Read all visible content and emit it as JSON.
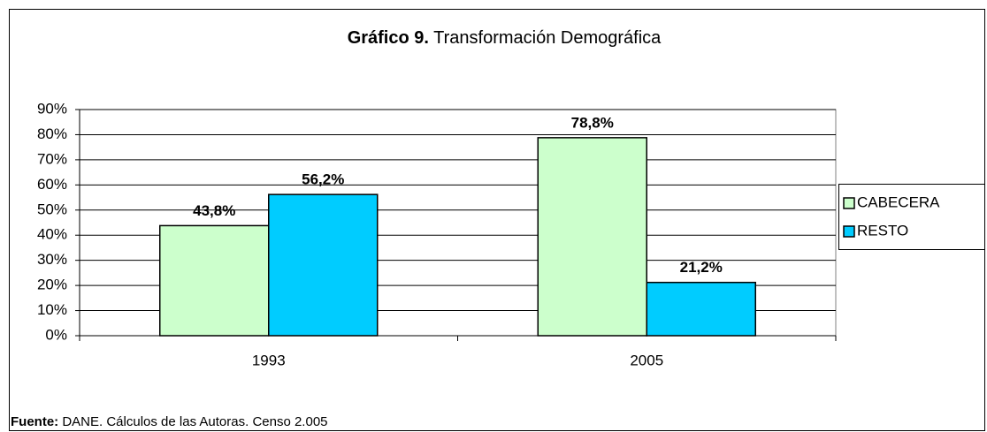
{
  "chart_data": {
    "type": "bar",
    "title_label": "Gráfico 9.",
    "title": "Transformación Demográfica",
    "categories": [
      "1993",
      "2005"
    ],
    "series": [
      {
        "name": "CABECERA",
        "color": "#ccffcc",
        "values": [
          43.8,
          78.8
        ],
        "value_labels": [
          "43,8%",
          "78,8%"
        ]
      },
      {
        "name": "RESTO",
        "color": "#00ccff",
        "values": [
          56.2,
          21.2
        ],
        "value_labels": [
          "56,2%",
          "21,2%"
        ]
      }
    ],
    "ylim": [
      0,
      90
    ],
    "yticks": [
      {
        "value": 0,
        "label": "0%"
      },
      {
        "value": 10,
        "label": "10%"
      },
      {
        "value": 20,
        "label": "20%"
      },
      {
        "value": 30,
        "label": "30%"
      },
      {
        "value": 40,
        "label": "40%"
      },
      {
        "value": 50,
        "label": "50%"
      },
      {
        "value": 60,
        "label": "60%"
      },
      {
        "value": 70,
        "label": "70%"
      },
      {
        "value": 80,
        "label": "80%"
      },
      {
        "value": 90,
        "label": "90%"
      }
    ],
    "grid": true,
    "legend": "right",
    "source_label": "Fuente:",
    "source": "DANE. Cálculos de las Autoras. Censo 2.005"
  }
}
